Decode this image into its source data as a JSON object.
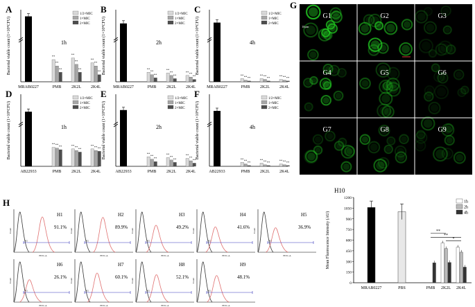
{
  "chart_data": [
    {
      "panel": "A",
      "type": "bar",
      "ylabel": "Bacterial viable count (1×10⁴CFU)",
      "time_label": "1h",
      "control": {
        "label": "MRAB0227",
        "value": 270
      },
      "categories": [
        "PMB",
        "2K2L",
        "2K4L"
      ],
      "series": [
        {
          "name": "1/2×MIC",
          "values": [
            28,
            30,
            24
          ]
        },
        {
          "name": "1×MIC",
          "values": [
            20,
            22,
            20
          ]
        },
        {
          "name": "2×MIC",
          "values": [
            12,
            12,
            9
          ]
        }
      ],
      "significance": "**",
      "axis_break": true
    },
    {
      "panel": "B",
      "type": "bar",
      "ylabel": "Bacterial viable count (1×10⁴CFU)",
      "time_label": "2h",
      "control": {
        "label": "MRAB0227",
        "value": 185
      },
      "categories": [
        "PMB",
        "2K2L",
        "2K4L"
      ],
      "series": [
        {
          "name": "1/2×MIC",
          "values": [
            12,
            11,
            8
          ]
        },
        {
          "name": "1×MIC",
          "values": [
            9,
            8,
            6
          ]
        },
        {
          "name": "2×MIC",
          "values": [
            5,
            4,
            3
          ]
        }
      ],
      "significance": "**",
      "axis_break": true
    },
    {
      "panel": "C",
      "type": "bar",
      "ylabel": "Bacterial viable count (1×10⁴CFU)",
      "time_label": "4h",
      "control": {
        "label": "MRAB0227",
        "value": 195
      },
      "categories": [
        "PMB",
        "2K2L",
        "2K4L"
      ],
      "series": [
        {
          "name": "1/2×MIC",
          "values": [
            4,
            4,
            3
          ]
        },
        {
          "name": "1×MIC",
          "values": [
            2,
            3,
            2
          ]
        },
        {
          "name": "2×MIC",
          "values": [
            1,
            1,
            1
          ]
        }
      ],
      "significance": "**",
      "axis_break": true
    },
    {
      "panel": "D",
      "type": "bar",
      "ylabel": "Bacterial viable count (1×10⁴CFU)",
      "time_label": "1h",
      "control": {
        "label": "AB22933",
        "value": 140
      },
      "categories": [
        "PMB",
        "2K2L",
        "2K4L"
      ],
      "series": [
        {
          "name": "1/2×MIC",
          "values": [
            24,
            22,
            22
          ]
        },
        {
          "name": "1×MIC",
          "values": [
            23,
            20,
            20
          ]
        },
        {
          "name": "2×MIC",
          "values": [
            21,
            18,
            19
          ]
        }
      ],
      "significance": "**",
      "axis_break": true
    },
    {
      "panel": "E",
      "type": "bar",
      "ylabel": "Bacterial viable count (1×10⁴CFU)",
      "time_label": "2h",
      "control": {
        "label": "AB22933",
        "value": 160
      },
      "categories": [
        "PMB",
        "2K2L",
        "2K4L"
      ],
      "series": [
        {
          "name": "1/2×MIC",
          "values": [
            12,
            11,
            10
          ]
        },
        {
          "name": "1×MIC",
          "values": [
            9,
            8,
            7
          ]
        },
        {
          "name": "2×MIC",
          "values": [
            6,
            5,
            4
          ]
        }
      ],
      "significance": "**",
      "axis_break": true
    },
    {
      "panel": "F",
      "type": "bar",
      "ylabel": "Bacterial viable count (1×10⁴CFU)",
      "time_label": "4h",
      "control": {
        "label": "AB22933",
        "value": 150
      },
      "categories": [
        "PMB",
        "2K2L",
        "2K4L"
      ],
      "series": [
        {
          "name": "1/2×MIC",
          "values": [
            5,
            4,
            3
          ]
        },
        {
          "name": "1×MIC",
          "values": [
            3,
            2,
            2
          ]
        },
        {
          "name": "2×MIC",
          "values": [
            1,
            1,
            1
          ]
        }
      ],
      "significance": "**",
      "axis_break": true
    },
    {
      "panel": "H10",
      "type": "bar",
      "title": "H10",
      "ylabel": "Mean Fluorescence Intensity (AU)",
      "ylim": [
        0,
        1200
      ],
      "yticks": [
        0,
        150,
        300,
        450,
        600,
        750,
        900,
        1050,
        1200
      ],
      "controls": [
        {
          "label": "MRAB0227",
          "value": 1060,
          "error": 90
        },
        {
          "label": "PBS",
          "value": 1000,
          "error": 110
        }
      ],
      "categories": [
        "PMB",
        "2K2L",
        "2K4L"
      ],
      "series": [
        {
          "name": "1h",
          "values": [
            null,
            560,
            500
          ]
        },
        {
          "name": "2h",
          "values": [
            null,
            480,
            430
          ]
        },
        {
          "name": "4h",
          "values": [
            280,
            285,
            220
          ]
        }
      ],
      "significance": [
        {
          "between": [
            "PMB",
            "2K2L"
          ],
          "mark": "**"
        },
        {
          "between": [
            "PMB",
            "2K4L"
          ],
          "mark": "**"
        },
        {
          "between": [
            "2K2L",
            "2K4L"
          ],
          "mark": "*"
        }
      ]
    }
  ],
  "microscopy": {
    "panel": "G",
    "scale_label": "10μm",
    "cells": [
      "G1",
      "G2",
      "G3",
      "G4",
      "G5",
      "G6",
      "G7",
      "G8",
      "G9"
    ],
    "intensity": [
      1.0,
      0.9,
      0.3,
      0.75,
      0.45,
      0.35,
      0.55,
      0.6,
      0.4
    ]
  },
  "flow": {
    "panel": "H",
    "xlabel": "FITC-A",
    "ylabel": "Count",
    "gate_label": "P2",
    "plots": [
      {
        "id": "H1",
        "percent": "91.1%",
        "shift": 0.9
      },
      {
        "id": "H2",
        "percent": "89.9%",
        "shift": 0.88
      },
      {
        "id": "H3",
        "percent": "49.2%",
        "shift": 0.5
      },
      {
        "id": "H4",
        "percent": "41.6%",
        "shift": 0.42
      },
      {
        "id": "H5",
        "percent": "36.9%",
        "shift": 0.38
      },
      {
        "id": "H6",
        "percent": "26.1%",
        "shift": 0.28
      },
      {
        "id": "H7",
        "percent": "60.1%",
        "shift": 0.6
      },
      {
        "id": "H8",
        "percent": "52.1%",
        "shift": 0.52
      },
      {
        "id": "H9",
        "percent": "48.1%",
        "shift": 0.48
      }
    ]
  },
  "colors": {
    "bar_control": "#000000",
    "bar_series1": "#d9d9d9",
    "bar_series2": "#a6a6a6",
    "bar_series3": "#4d4d4d",
    "flow_control": "#333333",
    "flow_sample": "#e07070",
    "flow_gate": "#3333bb",
    "fluor": "#22cc22"
  }
}
